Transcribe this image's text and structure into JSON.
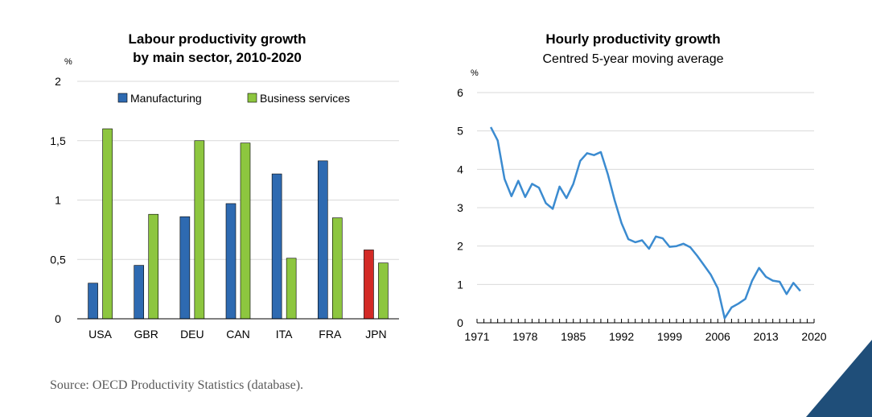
{
  "source": "Source: OECD Productivity Statistics (database).",
  "colors": {
    "manufacturing": "#2e6ab1",
    "business_services": "#8dc63f",
    "highlight": "#d32a26",
    "line": "#3b8bd0",
    "corner": "#1f4e79"
  },
  "chart_data": [
    {
      "type": "bar",
      "title_line1": "Labour productivity growth",
      "title_line2": "by main sector, 2010-2020",
      "unit": "%",
      "categories": [
        "USA",
        "GBR",
        "DEU",
        "CAN",
        "ITA",
        "FRA",
        "JPN"
      ],
      "series": [
        {
          "name": "Manufacturing",
          "values": [
            0.3,
            0.45,
            0.86,
            0.97,
            1.22,
            1.33,
            0.58
          ]
        },
        {
          "name": "Business services",
          "values": [
            1.6,
            0.88,
            1.5,
            1.48,
            0.51,
            0.85,
            0.47
          ]
        }
      ],
      "highlight": {
        "category": "JPN",
        "series": "Manufacturing"
      },
      "ylim": [
        0,
        2
      ],
      "yticks": [
        0,
        0.5,
        1,
        1.5,
        2
      ],
      "ytick_labels": [
        "0",
        "0,5",
        "1",
        "1,5",
        "2"
      ],
      "grid": true,
      "legend": "top"
    },
    {
      "type": "line",
      "title": "Hourly productivity growth",
      "subtitle": "Centred 5-year moving average",
      "unit": "%",
      "xlim": [
        1971,
        2020
      ],
      "ylim": [
        0,
        6
      ],
      "yticks": [
        0,
        1,
        2,
        3,
        4,
        5,
        6
      ],
      "xticks": [
        1971,
        1978,
        1985,
        1992,
        1999,
        2006,
        2013,
        2020
      ],
      "grid": true,
      "x": [
        1973,
        1974,
        1975,
        1976,
        1977,
        1978,
        1979,
        1980,
        1981,
        1982,
        1983,
        1984,
        1985,
        1986,
        1987,
        1988,
        1989,
        1990,
        1991,
        1992,
        1993,
        1994,
        1995,
        1996,
        1997,
        1998,
        1999,
        2000,
        2001,
        2002,
        2003,
        2004,
        2005,
        2006,
        2007,
        2008,
        2009,
        2010,
        2011,
        2012,
        2013,
        2014,
        2015,
        2016,
        2017,
        2018
      ],
      "y": [
        5.1,
        4.75,
        3.75,
        3.3,
        3.7,
        3.28,
        3.62,
        3.52,
        3.12,
        2.97,
        3.55,
        3.25,
        3.62,
        4.22,
        4.42,
        4.37,
        4.45,
        3.88,
        3.2,
        2.6,
        2.18,
        2.1,
        2.15,
        1.93,
        2.25,
        2.2,
        1.98,
        2.0,
        2.06,
        1.97,
        1.75,
        1.5,
        1.25,
        0.9,
        0.12,
        0.4,
        0.5,
        0.62,
        1.1,
        1.43,
        1.2,
        1.1,
        1.07,
        0.75,
        1.04,
        0.83
      ]
    }
  ]
}
